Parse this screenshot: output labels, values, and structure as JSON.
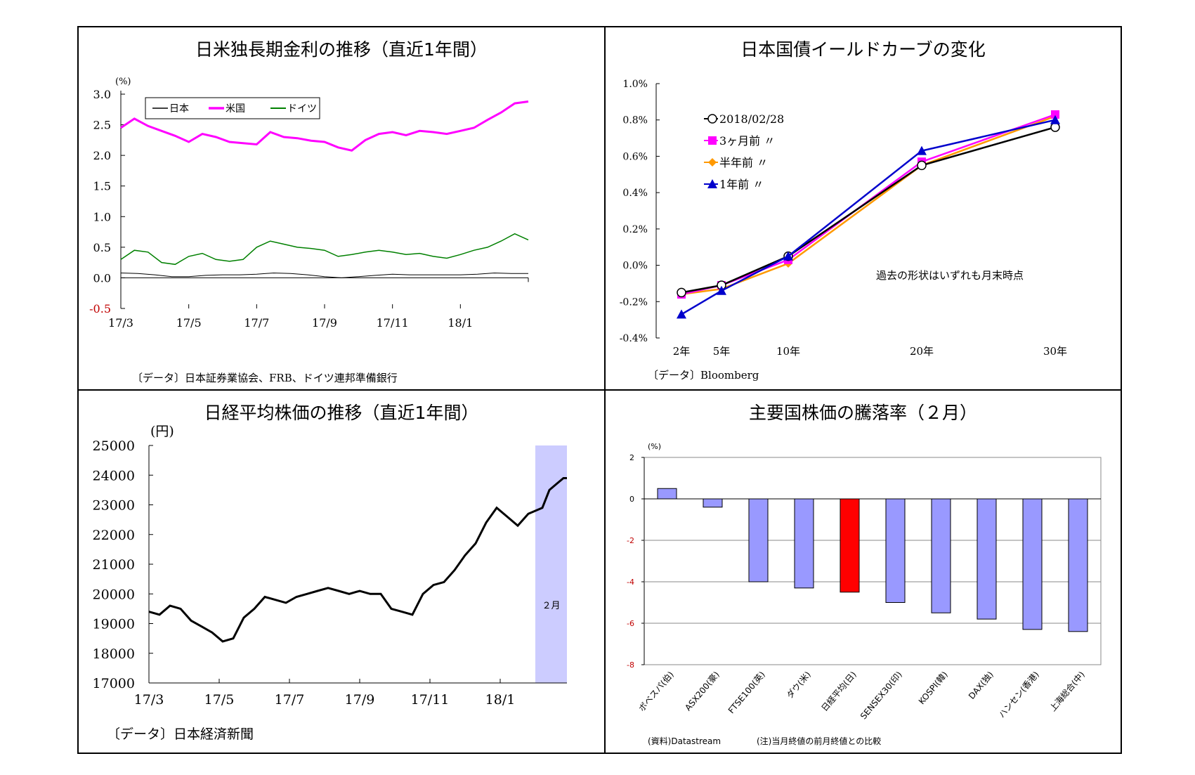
{
  "charts": [
    {
      "title": "日米独長期金利の推移（直近1年間）",
      "source": "〔データ〕日本証券業協会、FRB、ドイツ連邦準備銀行"
    },
    {
      "title": "日本国債イールドカーブの変化",
      "source": "〔データ〕Bloomberg",
      "note": "過去の形状はいずれも月末時点"
    },
    {
      "title": "日経平均株価の推移（直近1年間）",
      "source": "〔データ〕日本経済新聞",
      "band_label": "２月"
    },
    {
      "title": "主要国株価の騰落率（２月）",
      "source_left": "(資料)Datastream",
      "source_right": "(注)当月終値の前月終値との比較"
    }
  ],
  "chart_data": [
    {
      "type": "line",
      "title": "日米独長期金利の推移（直近1年間）",
      "ylabel": "(%)",
      "ylim": [
        -0.5,
        3.0
      ],
      "yticks": [
        3.0,
        2.5,
        2.0,
        1.5,
        1.0,
        0.5,
        0.0,
        -0.5
      ],
      "ytick_labels": [
        "3.0",
        "2.5",
        "2.0",
        "1.5",
        "1.0",
        "0.5",
        "0.0",
        "-0.5"
      ],
      "xticks": [
        "17/3",
        "17/5",
        "17/7",
        "17/9",
        "17/11",
        "18/1"
      ],
      "xlim_months": [
        0,
        12
      ],
      "legend_position": "top-left",
      "series": [
        {
          "name": "日本",
          "color": "#000000",
          "x": [
            0,
            0.5,
            1,
            1.5,
            2,
            2.5,
            3,
            3.5,
            4,
            4.5,
            5,
            5.5,
            6,
            6.5,
            7,
            7.5,
            8,
            8.5,
            9,
            9.5,
            10,
            10.5,
            11,
            11.5,
            12
          ],
          "values": [
            0.08,
            0.07,
            0.05,
            0.02,
            0.02,
            0.04,
            0.05,
            0.05,
            0.06,
            0.08,
            0.07,
            0.05,
            0.02,
            0.0,
            0.02,
            0.04,
            0.06,
            0.05,
            0.05,
            0.05,
            0.05,
            0.06,
            0.08,
            0.07,
            0.07
          ]
        },
        {
          "name": "米国",
          "color": "#ff00ff",
          "x": [
            0,
            0.4,
            0.8,
            1.2,
            1.6,
            2,
            2.4,
            2.8,
            3.2,
            3.6,
            4,
            4.4,
            4.8,
            5.2,
            5.6,
            6,
            6.4,
            6.8,
            7.2,
            7.6,
            8,
            8.4,
            8.8,
            9.2,
            9.6,
            10,
            10.4,
            10.8,
            11.2,
            11.6,
            12
          ],
          "values": [
            2.45,
            2.6,
            2.48,
            2.4,
            2.32,
            2.22,
            2.35,
            2.3,
            2.22,
            2.2,
            2.18,
            2.38,
            2.3,
            2.28,
            2.24,
            2.22,
            2.13,
            2.08,
            2.25,
            2.35,
            2.38,
            2.33,
            2.4,
            2.38,
            2.35,
            2.4,
            2.45,
            2.58,
            2.7,
            2.85,
            2.88
          ]
        },
        {
          "name": "ドイツ",
          "color": "#008000",
          "x": [
            0,
            0.4,
            0.8,
            1.2,
            1.6,
            2,
            2.4,
            2.8,
            3.2,
            3.6,
            4,
            4.4,
            4.8,
            5.2,
            5.6,
            6,
            6.4,
            6.8,
            7.2,
            7.6,
            8,
            8.4,
            8.8,
            9.2,
            9.6,
            10,
            10.4,
            10.8,
            11.2,
            11.6,
            12
          ],
          "values": [
            0.3,
            0.45,
            0.42,
            0.25,
            0.22,
            0.35,
            0.4,
            0.3,
            0.27,
            0.3,
            0.5,
            0.6,
            0.55,
            0.5,
            0.48,
            0.45,
            0.35,
            0.38,
            0.42,
            0.45,
            0.42,
            0.38,
            0.4,
            0.35,
            0.32,
            0.38,
            0.45,
            0.5,
            0.6,
            0.72,
            0.62
          ]
        }
      ]
    },
    {
      "type": "line",
      "title": "日本国債イールドカーブの変化",
      "x": [
        "2年",
        "5年",
        "10年",
        "20年",
        "30年"
      ],
      "x_values": [
        2,
        5,
        10,
        20,
        30
      ],
      "ylim": [
        -0.4,
        1.0
      ],
      "yticks": [
        1.0,
        0.8,
        0.6,
        0.4,
        0.2,
        0.0,
        -0.2,
        -0.4
      ],
      "ytick_labels": [
        "1.0%",
        "0.8%",
        "0.6%",
        "0.4%",
        "0.2%",
        "0.0%",
        "-0.2%",
        "-0.4%"
      ],
      "legend_position": "top-left",
      "series": [
        {
          "name": "2018/02/28",
          "marker": "circle",
          "color": "#000000",
          "values": [
            -0.15,
            -0.11,
            0.05,
            0.55,
            0.76
          ]
        },
        {
          "name": "3ヶ月前 〃",
          "marker": "square",
          "color": "#ff00ff",
          "values": [
            -0.16,
            -0.11,
            0.03,
            0.57,
            0.83
          ]
        },
        {
          "name": "半年前 〃",
          "marker": "diamond",
          "color": "#ff9900",
          "values": [
            -0.16,
            -0.13,
            0.01,
            0.55,
            0.82
          ]
        },
        {
          "name": "1年前 〃",
          "marker": "triangle",
          "color": "#0000cc",
          "values": [
            -0.27,
            -0.14,
            0.05,
            0.63,
            0.8
          ]
        }
      ]
    },
    {
      "type": "line",
      "title": "日経平均株価の推移（直近1年間）",
      "ylabel": "(円)",
      "ylim": [
        17000,
        25000
      ],
      "yticks": [
        25000,
        24000,
        23000,
        22000,
        21000,
        20000,
        19000,
        18000,
        17000
      ],
      "xticks": [
        "17/3",
        "17/5",
        "17/7",
        "17/9",
        "17/11",
        "18/1"
      ],
      "xlim_months": [
        0,
        12
      ],
      "highlight_range": [
        11,
        11.9
      ],
      "highlight_label": "２月",
      "series": [
        {
          "name": "",
          "color": "#000000",
          "x": [
            0,
            0.3,
            0.6,
            0.9,
            1.2,
            1.5,
            1.8,
            2.1,
            2.4,
            2.7,
            3,
            3.3,
            3.6,
            3.9,
            4.2,
            4.5,
            4.8,
            5.1,
            5.4,
            5.7,
            6,
            6.3,
            6.6,
            6.9,
            7.2,
            7.5,
            7.8,
            8.1,
            8.4,
            8.7,
            9,
            9.3,
            9.6,
            9.9,
            10.2,
            10.5,
            10.8,
            11,
            11.2,
            11.4,
            11.6,
            11.8,
            11.9
          ],
          "values": [
            19400,
            19300,
            19600,
            19500,
            19100,
            18900,
            18700,
            18400,
            18500,
            19200,
            19500,
            19900,
            19800,
            19700,
            19900,
            20000,
            20100,
            20200,
            20100,
            20000,
            20100,
            20000,
            20000,
            19500,
            19400,
            19300,
            20000,
            20300,
            20400,
            20800,
            21300,
            21700,
            22400,
            22900,
            22600,
            22300,
            22700,
            22800,
            22900,
            23500,
            23700,
            23900,
            23900
          ]
        }
      ]
    },
    {
      "type": "bar",
      "title": "主要国株価の騰落率（２月）",
      "ylabel": "(%)",
      "ylim": [
        -8,
        2
      ],
      "yticks": [
        2,
        0,
        -2,
        -4,
        -6,
        -8
      ],
      "categories": [
        "ボベスパ(伯)",
        "ASX200(豪)",
        "FTSE100(英)",
        "ダウ(米)",
        "日経平均(日)",
        "SENSEX30(印)",
        "KOSPI(韓)",
        "DAX(独)",
        "ハンセン(香港)",
        "上海総合(中)"
      ],
      "values": [
        0.5,
        -0.4,
        -4.0,
        -4.3,
        -4.5,
        -5.0,
        -5.5,
        -5.8,
        -6.3,
        -6.4
      ],
      "highlight_index": 4,
      "bar_color": "#9999ff",
      "highlight_color": "#ff0000"
    }
  ]
}
